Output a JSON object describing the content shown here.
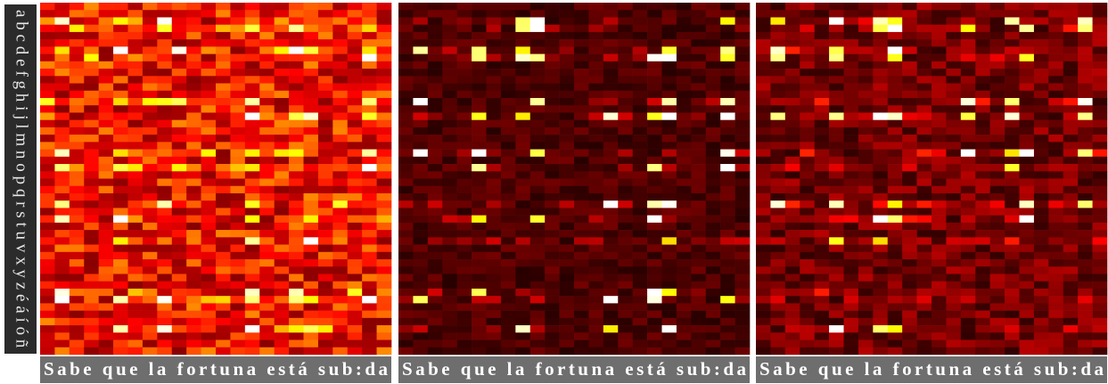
{
  "y_label": "abcdefghijlmnopqrstuvxyzéáíóñ",
  "caption": "Sabe que la fortuna está sub:da"
}
